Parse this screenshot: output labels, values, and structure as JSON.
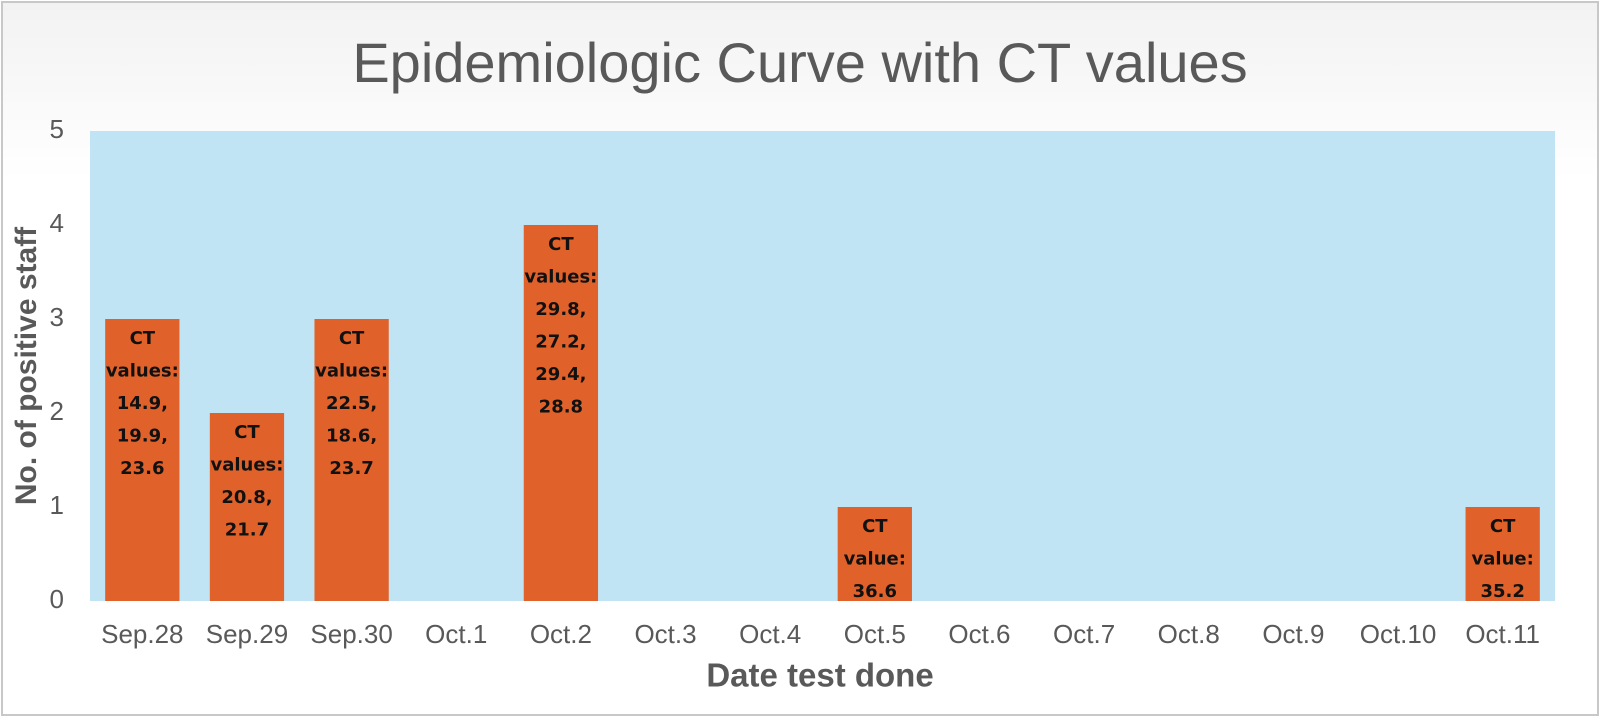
{
  "chart_data": {
    "type": "bar",
    "title": "Epidemiologic Curve with CT values",
    "x_label": "Date test done",
    "y_label": "No. of positive staff",
    "categories": [
      "Sep.28",
      "Sep.29",
      "Sep.30",
      "Oct.1",
      "Oct.2",
      "Oct.3",
      "Oct.4",
      "Oct.5",
      "Oct.6",
      "Oct.7",
      "Oct.8",
      "Oct.9",
      "Oct.10",
      "Oct.11"
    ],
    "values": [
      3,
      2,
      3,
      0,
      4,
      0,
      0,
      1,
      0,
      0,
      0,
      0,
      0,
      1
    ],
    "annotations": [
      [
        "CT",
        "values:",
        "14.9,",
        "19.9,",
        "23.6"
      ],
      [
        "CT",
        "values:",
        "20.8,",
        "21.7"
      ],
      [
        "CT",
        "values:",
        "22.5,",
        "18.6,",
        "23.7"
      ],
      null,
      [
        "CT",
        "values:",
        "29.8,",
        "27.2,",
        "29.4,",
        "28.8"
      ],
      null,
      null,
      [
        "CT",
        "value:",
        "36.6"
      ],
      null,
      null,
      null,
      null,
      null,
      [
        "CT",
        "value:",
        "35.2"
      ]
    ],
    "color": "#e0622a",
    "plot_background": "#c1e4f4",
    "ylim": [
      0,
      5
    ],
    "yticks": [
      0,
      1,
      2,
      3,
      4,
      5
    ],
    "grid": false
  }
}
